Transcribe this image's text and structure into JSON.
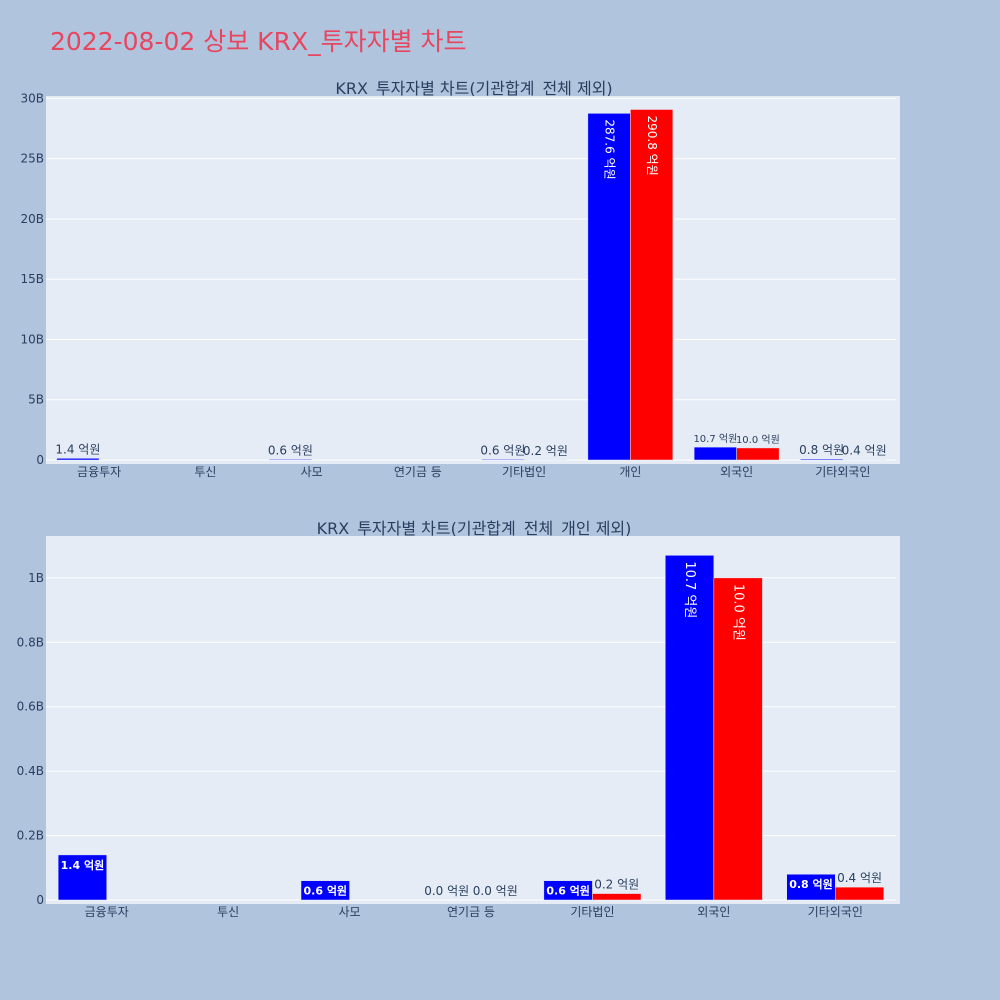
{
  "page_title": "2022-08-02 상보 KRX_투자자별 차트",
  "colors": {
    "page_bg": "#b0c4de",
    "plot_bg": "#e5ecf6",
    "title": "#e8455f",
    "buy": "#0000ff",
    "sell": "#ff0000",
    "text": "#2a3f5f",
    "grid": "#ffffff"
  },
  "chart_data": [
    {
      "type": "bar",
      "title": "KRX_투자자별 차트(기관합계_전체 제외)",
      "categories": [
        "금융투자",
        "투신",
        "사모",
        "연기금 등",
        "기타법인",
        "개인",
        "외국인",
        "기타외국인"
      ],
      "series": [
        {
          "color": "#0000ff",
          "values": [
            140000000,
            0,
            60000000,
            0,
            60000000,
            28760000000,
            1070000000,
            80000000
          ],
          "labels": [
            "1.4 억원",
            "",
            "0.6 억원",
            "",
            "0.6 억원",
            "287.6 억원",
            "10.7 억원",
            "0.8 억원"
          ]
        },
        {
          "color": "#ff0000",
          "values": [
            0,
            0,
            0,
            0,
            20000000,
            29080000000,
            1000000000,
            40000000
          ],
          "labels": [
            "",
            "",
            "",
            "",
            "0.2 억원",
            "290.8 억원",
            "10.0 억원",
            "0.4 억원"
          ]
        }
      ],
      "yticks": [
        0,
        5000000000,
        10000000000,
        15000000000,
        20000000000,
        25000000000,
        30000000000
      ],
      "ytick_labels": [
        "0",
        "5B",
        "10B",
        "15B",
        "20B",
        "25B",
        "30B"
      ],
      "ylim": [
        0,
        30200000000
      ],
      "grid": true
    },
    {
      "type": "bar",
      "title": "KRX_투자자별 차트(기관합계_전체_개인 제외)",
      "categories": [
        "금융투자",
        "투신",
        "사모",
        "연기금 등",
        "기타법인",
        "외국인",
        "기타외국인"
      ],
      "series": [
        {
          "color": "#0000ff",
          "values": [
            140000000,
            0,
            60000000,
            0,
            60000000,
            1070000000,
            80000000
          ],
          "labels": [
            "1.4 억원",
            "",
            "0.6 억원",
            "0.0 억원",
            "0.6 억원",
            "10.7 억원",
            "0.8 억원"
          ]
        },
        {
          "color": "#ff0000",
          "values": [
            0,
            0,
            0,
            0,
            20000000,
            1000000000,
            40000000
          ],
          "labels": [
            "",
            "",
            "",
            "0.0 억원",
            "0.2 억원",
            "10.0 억원",
            "0.4 억원"
          ]
        }
      ],
      "yticks": [
        0,
        200000000,
        400000000,
        600000000,
        800000000,
        1000000000
      ],
      "ytick_labels": [
        "0",
        "0.2B",
        "0.4B",
        "0.6B",
        "0.8B",
        "1B"
      ],
      "ylim": [
        0,
        1130000000
      ],
      "grid": true
    }
  ]
}
